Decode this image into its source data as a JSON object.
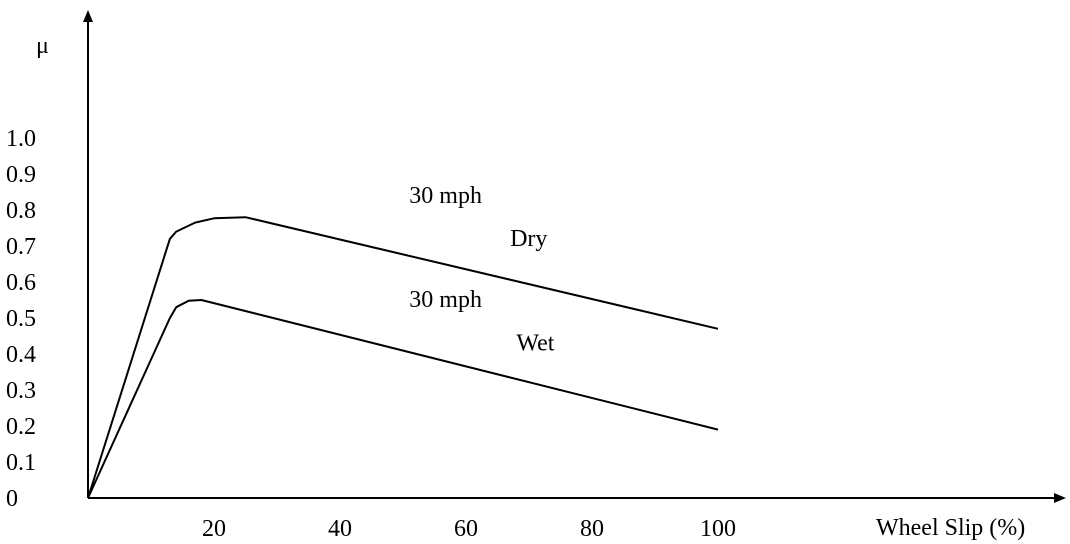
{
  "chart_data": {
    "type": "line",
    "title": "",
    "xlabel": "Wheel Slip (%)",
    "ylabel": "μ",
    "xlim": [
      0,
      130
    ],
    "ylim": [
      0,
      1.0
    ],
    "x_ticks": [
      20,
      40,
      60,
      80,
      100
    ],
    "x_tick_labels": [
      "20",
      "40",
      "60",
      "80",
      "100"
    ],
    "y_ticks": [
      0,
      0.1,
      0.2,
      0.3,
      0.4,
      0.5,
      0.6,
      0.7,
      0.8,
      0.9,
      1.0
    ],
    "y_tick_labels": [
      "0",
      "0.1",
      "0.2",
      "0.3",
      "0.4",
      "0.5",
      "0.6",
      "0.7",
      "0.8",
      "0.9",
      "1.0"
    ],
    "grid": false,
    "legend": "none",
    "series": [
      {
        "x": [
          0,
          13,
          14,
          17,
          20,
          25,
          100
        ],
        "y": [
          0,
          0.72,
          0.74,
          0.765,
          0.777,
          0.78,
          0.47
        ]
      },
      {
        "x": [
          0,
          13,
          14,
          16,
          18,
          100
        ],
        "y": [
          0,
          0.5,
          0.53,
          0.548,
          0.55,
          0.19
        ]
      }
    ],
    "annotations": [
      {
        "text": "30 mph",
        "x": 51,
        "y": 0.82
      },
      {
        "text": "Dry",
        "x": 67,
        "y": 0.7
      },
      {
        "text": "30 mph",
        "x": 51,
        "y": 0.53
      },
      {
        "text": "Wet",
        "x": 68,
        "y": 0.41
      }
    ],
    "colors": {
      "line": "#000000",
      "axis": "#000000"
    }
  }
}
